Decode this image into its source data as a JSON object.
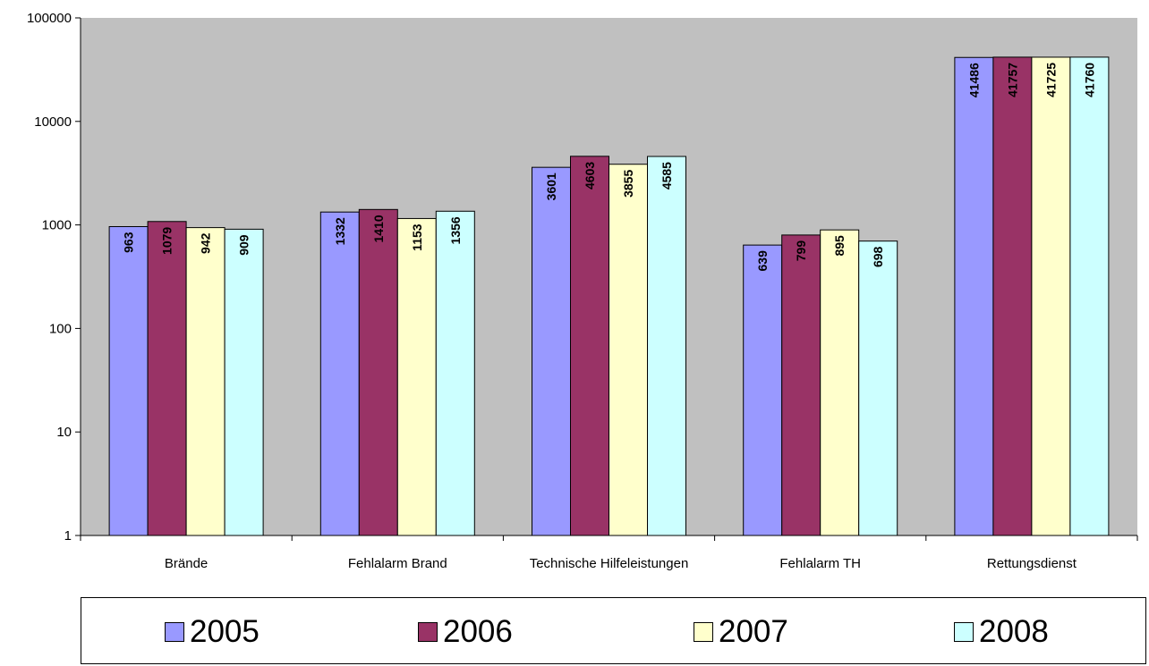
{
  "chart_data": {
    "type": "bar",
    "yscale": "log",
    "ylim": [
      1,
      100000
    ],
    "yticks": [
      "1",
      "10",
      "100",
      "1000",
      "10000",
      "100000"
    ],
    "categories": [
      "Brände",
      "Fehlalarm Brand",
      "Technische Hilfeleistungen",
      "Fehlalarm TH",
      "Rettungsdienst"
    ],
    "series": [
      {
        "name": "2005",
        "color": "#9999ff",
        "values": [
          963,
          1332,
          3601,
          639,
          41486
        ]
      },
      {
        "name": "2006",
        "color": "#993366",
        "values": [
          1079,
          1410,
          4603,
          799,
          41757
        ]
      },
      {
        "name": "2007",
        "color": "#ffffcc",
        "values": [
          942,
          1153,
          3855,
          895,
          41725
        ]
      },
      {
        "name": "2008",
        "color": "#ccffff",
        "values": [
          909,
          1356,
          4585,
          698,
          41760
        ]
      }
    ],
    "plot_background": "#c0c0c0",
    "legend_position": "bottom",
    "grid": false
  }
}
